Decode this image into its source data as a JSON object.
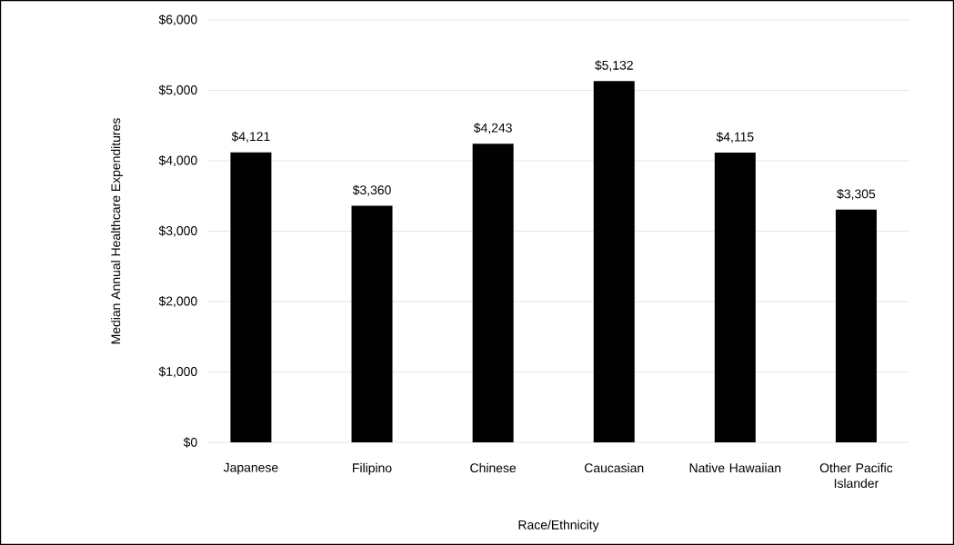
{
  "chart_data": {
    "type": "bar",
    "xlabel": "Race/Ethnicity",
    "ylabel": "Median Annual Healthcare Expenditures",
    "categories": [
      "Japanese",
      "Filipino",
      "Chinese",
      "Caucasian",
      "Native Hawaiian",
      "Other Pacific Islander"
    ],
    "values": [
      4121,
      3360,
      4243,
      5132,
      4115,
      3305
    ],
    "value_labels": [
      "$4,121",
      "$3,360",
      "$4,243",
      "$5,132",
      "$4,115",
      "$3,305"
    ],
    "color": "#000000",
    "ylim": [
      0,
      6000
    ],
    "yticks": [
      {
        "value": 0,
        "label": "$0"
      },
      {
        "value": 1000,
        "label": "$1,000"
      },
      {
        "value": 2000,
        "label": "$2,000"
      },
      {
        "value": 3000,
        "label": "$3,000"
      },
      {
        "value": 4000,
        "label": "$4,000"
      },
      {
        "value": 5000,
        "label": "$5,000"
      },
      {
        "value": 6000,
        "label": "$6,000"
      }
    ],
    "grid": "y"
  }
}
